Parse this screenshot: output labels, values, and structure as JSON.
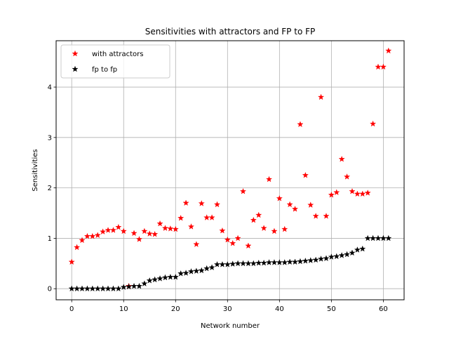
{
  "chart_data": {
    "type": "scatter",
    "title": "Sensitivities with attractors and FP to FP",
    "xlabel": "Network number",
    "ylabel": "Sensitivities",
    "xlim": [
      -3,
      64
    ],
    "ylim": [
      -0.22,
      4.92
    ],
    "xticks": [
      0,
      10,
      20,
      30,
      40,
      50,
      60
    ],
    "yticks": [
      0,
      1,
      2,
      3,
      4
    ],
    "grid": true,
    "legend_position": "top-left",
    "marker": "star",
    "x": [
      0,
      1,
      2,
      3,
      4,
      5,
      6,
      7,
      8,
      9,
      10,
      11,
      12,
      13,
      14,
      15,
      16,
      17,
      18,
      19,
      20,
      21,
      22,
      23,
      24,
      25,
      26,
      27,
      28,
      29,
      30,
      31,
      32,
      33,
      34,
      35,
      36,
      37,
      38,
      39,
      40,
      41,
      42,
      43,
      44,
      45,
      46,
      47,
      48,
      49,
      50,
      51,
      52,
      53,
      54,
      55,
      56,
      57,
      58,
      59,
      60,
      61
    ],
    "series": [
      {
        "name": "with attractors",
        "color": "#ff0000",
        "values": [
          0.53,
          0.82,
          0.96,
          1.04,
          1.04,
          1.06,
          1.13,
          1.16,
          1.16,
          1.22,
          1.14,
          0.05,
          1.1,
          0.98,
          1.14,
          1.09,
          1.08,
          1.29,
          1.2,
          1.19,
          1.18,
          1.4,
          1.7,
          1.23,
          0.88,
          1.69,
          1.41,
          1.41,
          1.67,
          1.15,
          0.97,
          0.9,
          1.0,
          1.93,
          0.85,
          1.36,
          1.46,
          1.2,
          2.17,
          1.14,
          1.79,
          1.18,
          1.67,
          1.58,
          3.26,
          2.25,
          1.66,
          1.44,
          3.8,
          1.44,
          1.86,
          1.91,
          2.57,
          2.22,
          1.93,
          1.88,
          1.88,
          1.9,
          3.27,
          4.4,
          4.4,
          4.72
        ]
      },
      {
        "name": "fp to fp",
        "color": "#000000",
        "values": [
          0.0,
          0.0,
          0.0,
          0.0,
          0.0,
          0.0,
          0.0,
          0.0,
          0.0,
          0.0,
          0.03,
          0.04,
          0.05,
          0.05,
          0.1,
          0.16,
          0.18,
          0.2,
          0.22,
          0.23,
          0.23,
          0.3,
          0.31,
          0.34,
          0.35,
          0.36,
          0.4,
          0.42,
          0.48,
          0.48,
          0.48,
          0.49,
          0.5,
          0.5,
          0.5,
          0.5,
          0.51,
          0.51,
          0.52,
          0.52,
          0.52,
          0.52,
          0.53,
          0.53,
          0.54,
          0.55,
          0.56,
          0.57,
          0.59,
          0.6,
          0.63,
          0.64,
          0.66,
          0.68,
          0.71,
          0.77,
          0.79,
          1.0,
          1.0,
          1.0,
          1.0,
          1.0
        ]
      }
    ]
  }
}
